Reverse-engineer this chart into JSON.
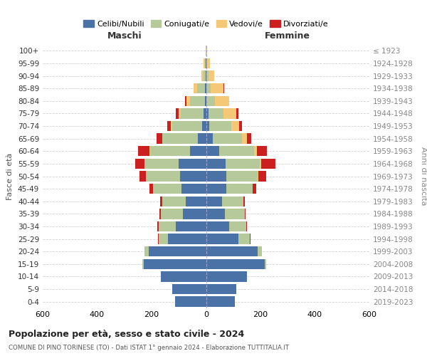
{
  "age_groups": [
    "0-4",
    "5-9",
    "10-14",
    "15-19",
    "20-24",
    "25-29",
    "30-34",
    "35-39",
    "40-44",
    "45-49",
    "50-54",
    "55-59",
    "60-64",
    "65-69",
    "70-74",
    "75-79",
    "80-84",
    "85-89",
    "90-94",
    "95-99",
    "100+"
  ],
  "birth_years": [
    "2019-2023",
    "2014-2018",
    "2009-2013",
    "2004-2008",
    "1999-2003",
    "1994-1998",
    "1989-1993",
    "1984-1988",
    "1979-1983",
    "1974-1978",
    "1969-1973",
    "1964-1968",
    "1959-1963",
    "1954-1958",
    "1949-1953",
    "1944-1948",
    "1939-1943",
    "1934-1938",
    "1929-1933",
    "1924-1928",
    "≤ 1923"
  ],
  "maschi": {
    "celibi": [
      115,
      125,
      165,
      230,
      210,
      140,
      110,
      85,
      75,
      90,
      95,
      100,
      60,
      30,
      15,
      8,
      3,
      3,
      1,
      1,
      0
    ],
    "coniugati": [
      0,
      0,
      0,
      5,
      15,
      35,
      65,
      80,
      85,
      105,
      125,
      125,
      145,
      130,
      110,
      85,
      55,
      30,
      8,
      3,
      1
    ],
    "vedovi": [
      0,
      0,
      0,
      0,
      0,
      0,
      0,
      0,
      0,
      0,
      2,
      2,
      2,
      2,
      5,
      8,
      15,
      12,
      8,
      4,
      1
    ],
    "divorziati": [
      0,
      0,
      0,
      0,
      0,
      2,
      5,
      5,
      8,
      12,
      22,
      32,
      42,
      20,
      12,
      10,
      3,
      2,
      0,
      0,
      0
    ]
  },
  "femmine": {
    "nubili": [
      105,
      110,
      150,
      215,
      190,
      120,
      85,
      68,
      58,
      75,
      75,
      72,
      48,
      25,
      12,
      8,
      2,
      2,
      2,
      1,
      1
    ],
    "coniugate": [
      0,
      0,
      0,
      5,
      15,
      42,
      62,
      75,
      78,
      95,
      115,
      125,
      128,
      108,
      82,
      55,
      30,
      15,
      7,
      3,
      0
    ],
    "vedove": [
      0,
      0,
      0,
      0,
      0,
      0,
      0,
      0,
      2,
      2,
      3,
      5,
      10,
      18,
      28,
      48,
      52,
      48,
      22,
      10,
      3
    ],
    "divorziate": [
      0,
      0,
      0,
      0,
      0,
      2,
      3,
      3,
      5,
      12,
      28,
      52,
      38,
      14,
      10,
      8,
      2,
      2,
      0,
      0,
      0
    ]
  },
  "colors": {
    "celibi_nubili": "#4a72a6",
    "coniugati": "#b5c99a",
    "vedovi": "#f5c878",
    "divorziati": "#cc2020"
  },
  "xlim": 600,
  "xtick_step": 200,
  "title": "Popolazione per età, sesso e stato civile - 2024",
  "subtitle": "COMUNE DI PINO TORINESE (TO) - Dati ISTAT 1° gennaio 2024 - Elaborazione TUTTITALIA.IT",
  "ylabel_left": "Fasce di età",
  "ylabel_right": "Anni di nascita",
  "xlabel_maschi": "Maschi",
  "xlabel_femmine": "Femmine",
  "legend_labels": [
    "Celibi/Nubili",
    "Coniugati/e",
    "Vedovi/e",
    "Divorziati/e"
  ],
  "bg_color": "#ffffff",
  "grid_color": "#cccccc",
  "bar_height": 0.82
}
